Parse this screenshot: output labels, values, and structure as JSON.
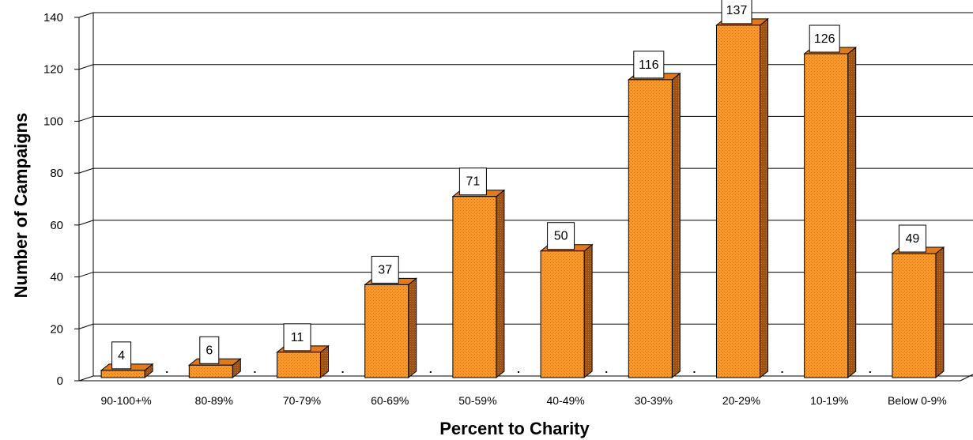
{
  "chart_data": {
    "type": "bar",
    "categories": [
      "90-100+%",
      "80-89%",
      "70-79%",
      "60-69%",
      "50-59%",
      "40-49%",
      "30-39%",
      "20-29%",
      "10-19%",
      "Below 0-9%"
    ],
    "values": [
      4,
      6,
      11,
      37,
      71,
      50,
      116,
      137,
      126,
      49
    ],
    "xlabel": "Percent to Charity",
    "ylabel": "Number of Campaigns",
    "ylim": [
      0,
      140
    ],
    "yticks": [
      0,
      20,
      40,
      60,
      80,
      100,
      120,
      140
    ],
    "grid": true,
    "three_d": true,
    "data_labels": true,
    "legend": "none"
  },
  "colors": {
    "bar_front": "#ff9a20",
    "bar_hatch": "#c86a10",
    "bar_side": "#9a5218",
    "bar_top": "#e07a1a",
    "grid": "#000000",
    "background": "#ffffff"
  }
}
